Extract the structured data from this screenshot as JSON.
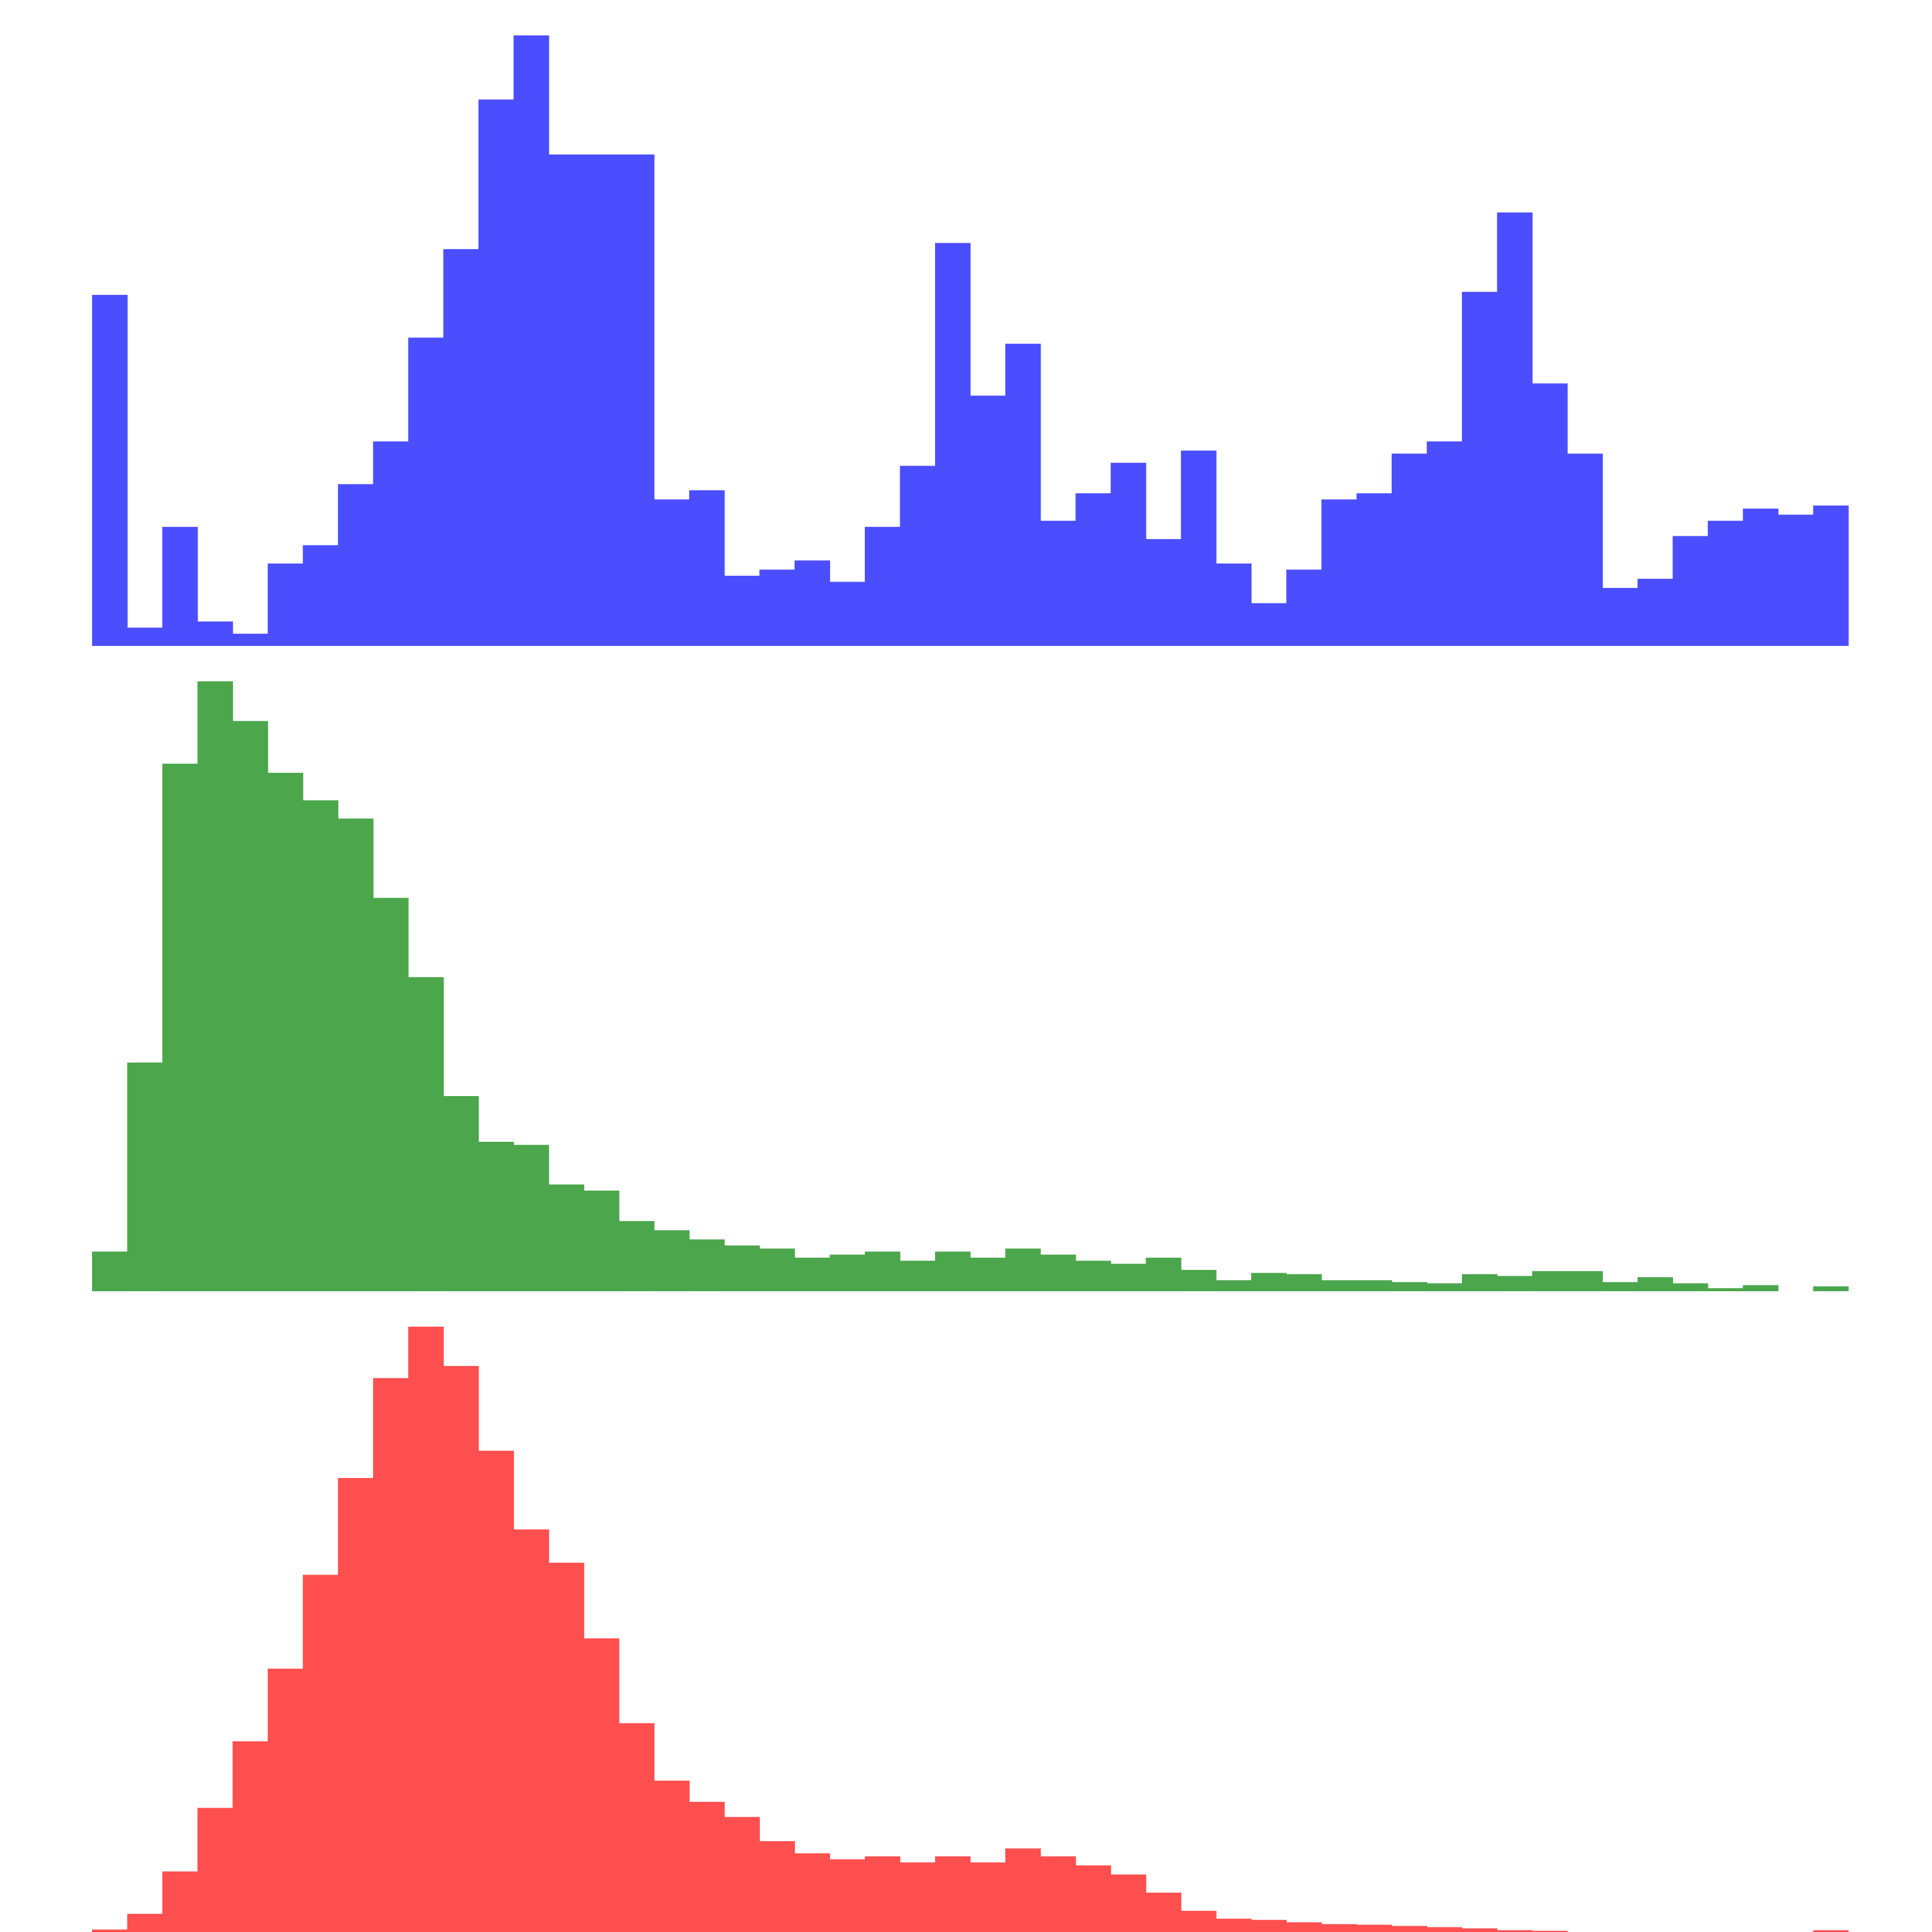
{
  "chart_data": [
    {
      "type": "bar",
      "color": "#4b4efe",
      "bin_count": 50,
      "ylim": [
        0,
        100
      ],
      "values": [
        57.5,
        3,
        19.5,
        4,
        2,
        13.5,
        16.5,
        26.5,
        33.5,
        50.5,
        65,
        89.5,
        100,
        80.5,
        80.5,
        80.5,
        24,
        25.5,
        11.5,
        12.5,
        14,
        10.5,
        19.5,
        29.5,
        66,
        41,
        49.5,
        20.5,
        25,
        30,
        17.5,
        32,
        13.5,
        7,
        12.5,
        24,
        25,
        31.5,
        33.5,
        58,
        71,
        43,
        31.5,
        9.5,
        11,
        18,
        20.5,
        22.5,
        21.5,
        23
      ]
    },
    {
      "type": "bar",
      "color": "#4ca64c",
      "bin_count": 50,
      "ylim": [
        0,
        100
      ],
      "values": [
        6.5,
        37.5,
        86.5,
        100,
        93.5,
        85,
        80.5,
        77.5,
        64.5,
        51.5,
        32,
        24.5,
        24,
        17.5,
        16.5,
        11.5,
        10,
        8.5,
        7.5,
        7,
        5.5,
        6,
        6.5,
        5,
        6.5,
        5.5,
        7,
        6,
        5,
        4.5,
        5.5,
        3.5,
        1.8,
        3,
        2.8,
        1.8,
        1.8,
        1.5,
        1.3,
        2.8,
        2.5,
        3.3,
        3.3,
        1.5,
        2.3,
        1.3,
        0.5,
        1,
        0,
        0.8
      ]
    },
    {
      "type": "bar",
      "color": "#ff4f4f",
      "bin_count": 50,
      "ylim": [
        0,
        100
      ],
      "values": [
        0.4,
        3,
        10,
        20.5,
        31.5,
        43.5,
        59,
        75,
        91.5,
        100,
        93.5,
        79.5,
        66.5,
        61,
        48.5,
        34.5,
        25,
        21.5,
        19,
        15,
        13,
        12,
        12.5,
        11.5,
        12.5,
        11.5,
        13.8,
        12.5,
        11,
        9.5,
        6.5,
        3.5,
        2.2,
        2,
        1.6,
        1.3,
        1.2,
        1,
        0.8,
        0.6,
        0.3,
        0.2,
        0,
        0,
        0,
        0,
        0,
        0,
        0,
        0.3
      ]
    }
  ]
}
